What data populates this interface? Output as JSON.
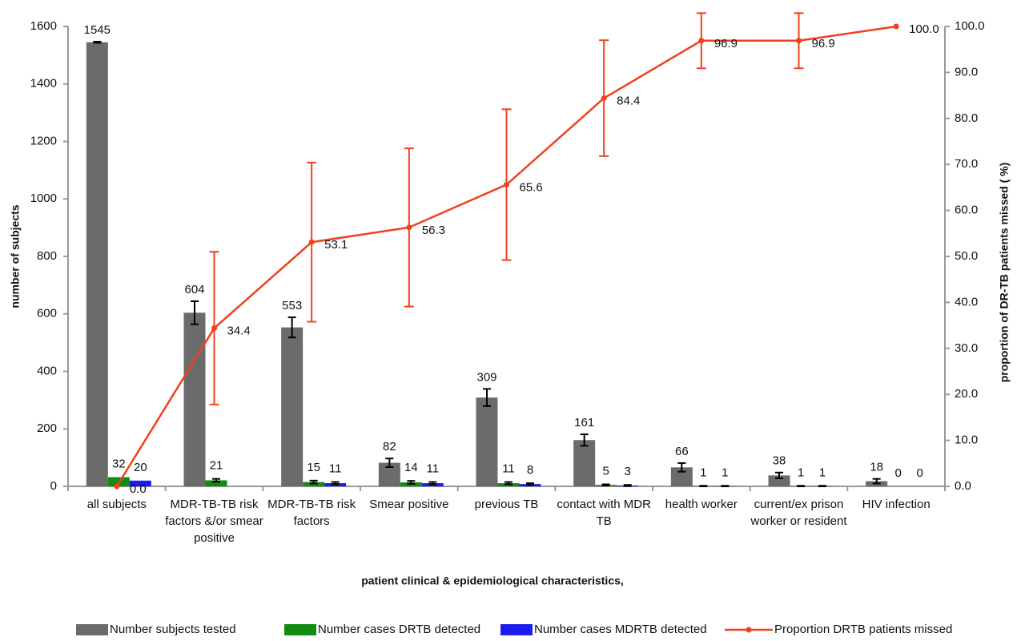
{
  "chart_data": {
    "type": "bar-line",
    "y_label": "number of subjects",
    "y2_label": "proportion of DR-TB patients missed ( %)",
    "x_label": "patient clinical & epidemiological characteristics,",
    "categories": [
      "all subjects",
      "MDR-TB-TB risk factors &/or smear positive",
      "MDR-TB-TB risk factors",
      "Smear positive",
      "previous TB",
      "contact with MDR TB",
      "health worker",
      "current/ex prison worker or resident",
      "HIV infection"
    ],
    "series": [
      {
        "name": "Number subjects tested",
        "type": "bar",
        "color": "#6b6b6b",
        "values": [
          1545,
          604,
          553,
          82,
          309,
          161,
          66,
          38,
          18
        ],
        "errors": [
          2,
          40,
          35,
          15,
          30,
          20,
          15,
          10,
          8
        ]
      },
      {
        "name": "Number cases DRTB detected",
        "type": "bar",
        "color": "#138a13",
        "values": [
          32,
          21,
          15,
          14,
          11,
          5,
          1,
          1,
          0
        ],
        "errors": [
          0,
          5,
          5,
          5,
          4,
          2,
          1,
          1,
          0
        ]
      },
      {
        "name": "Number cases MDRTB detected",
        "type": "bar",
        "color": "#1c1ced",
        "values": [
          20,
          null,
          11,
          11,
          8,
          3,
          1,
          1,
          0
        ],
        "errors": [
          0,
          null,
          4,
          4,
          3,
          2,
          1,
          1,
          0
        ]
      },
      {
        "name": "Proportion DRTB patients missed",
        "type": "line",
        "axis": "y2",
        "color": "#f0401e",
        "values": [
          0.0,
          34.4,
          53.1,
          56.3,
          65.6,
          84.4,
          96.9,
          96.9,
          100.0
        ],
        "value_labels": [
          "0.0",
          "34.4",
          "53.1",
          "56.3",
          "65.6",
          "84.4",
          "96.9",
          "96.9",
          "100.0"
        ],
        "errors": [
          0,
          16.6,
          17.3,
          17.2,
          16.4,
          12.6,
          6,
          6,
          0
        ]
      }
    ],
    "ylim": [
      0,
      1600
    ],
    "yticks": [
      0,
      200,
      400,
      600,
      800,
      1000,
      1200,
      1400,
      1600
    ],
    "y2lim": [
      0,
      100
    ],
    "y2ticks": [
      {
        "value": 0,
        "label": "0.0"
      },
      {
        "value": 10,
        "label": "10.0"
      },
      {
        "value": 20,
        "label": "20.0"
      },
      {
        "value": 30,
        "label": "30.0"
      },
      {
        "value": 40,
        "label": "40.0"
      },
      {
        "value": 50,
        "label": "50.0"
      },
      {
        "value": 60,
        "label": "60.0"
      },
      {
        "value": 70,
        "label": "70.0"
      },
      {
        "value": 80,
        "label": "80.0"
      },
      {
        "value": 90,
        "label": "90.0"
      },
      {
        "value": 100,
        "label": "100.0"
      }
    ],
    "legend": "bottom"
  }
}
